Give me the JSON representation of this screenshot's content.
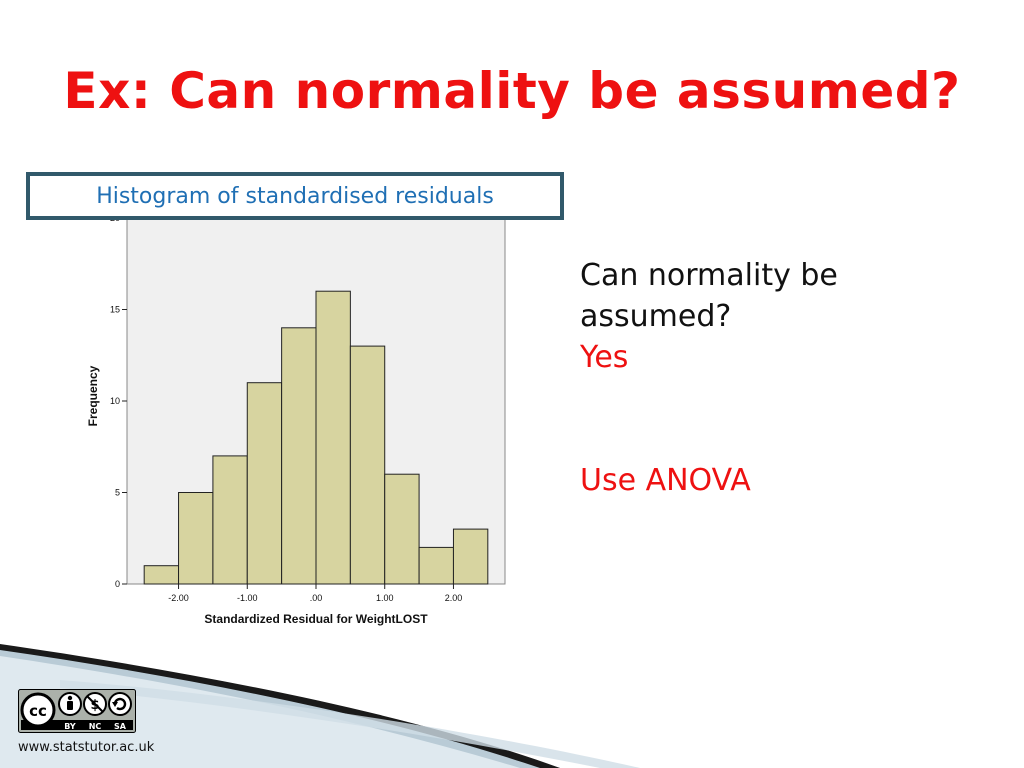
{
  "slide": {
    "title": "Ex: Can normality be assumed?",
    "caption": "Histogram of standardised residuals",
    "question": "Can normality be",
    "question_cont": "assumed?",
    "answer": "Yes",
    "recommendation": "Use ANOVA",
    "footer_url": "www.statstutor.ac.uk"
  },
  "license": {
    "label_by": "BY",
    "label_nc": "NC",
    "label_sa": "SA",
    "icon": "creative-commons-icon"
  },
  "colors": {
    "title": "#ee1111",
    "answer": "#ee1111",
    "bar_fill": "#d7d4a0",
    "plot_bg": "#f0f0f0",
    "caption_border": "#31596b",
    "caption_text": "#1f6fb4"
  },
  "chart_data": {
    "type": "bar",
    "title": "",
    "xlabel": "Standardized Residual for WeightLOST",
    "ylabel": "Frequency",
    "bin_edges": [
      -2.5,
      -2.0,
      -1.5,
      -1.0,
      -0.5,
      0.0,
      0.5,
      1.0,
      1.5,
      2.0,
      2.5
    ],
    "values": [
      1,
      5,
      7,
      11,
      14,
      16,
      13,
      6,
      2,
      3
    ],
    "xticks": [
      -2.0,
      -1.0,
      0.0,
      1.0,
      2.0
    ],
    "xtick_labels": [
      "-2.00",
      "-1.00",
      ".00",
      "1.00",
      "2.00"
    ],
    "yticks": [
      0,
      5,
      10,
      15,
      20
    ],
    "ytick_labels": [
      "0",
      "5",
      "10",
      "15",
      "20"
    ],
    "xlim": [
      -2.75,
      2.75
    ],
    "ylim": [
      0,
      20
    ],
    "grid": false,
    "legend": "none"
  }
}
